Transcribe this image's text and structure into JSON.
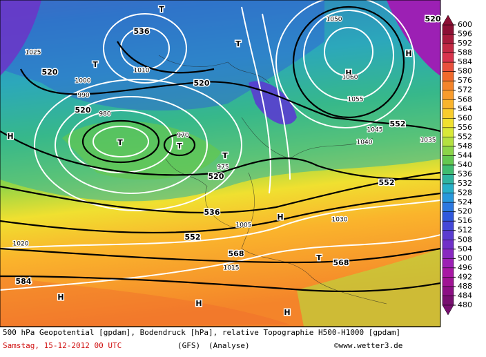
{
  "legend": {
    "values": [
      600,
      596,
      592,
      588,
      584,
      580,
      576,
      572,
      568,
      564,
      560,
      556,
      552,
      548,
      544,
      540,
      536,
      532,
      528,
      524,
      520,
      516,
      512,
      508,
      504,
      500,
      496,
      492,
      488,
      484,
      480
    ],
    "colors": [
      "#8c1034",
      "#a81c3c",
      "#c42a44",
      "#d8344c",
      "#e8503c",
      "#f06a2c",
      "#f4842a",
      "#f89c2c",
      "#fab42c",
      "#f8cc2c",
      "#f0e030",
      "#d8e838",
      "#b4e040",
      "#8cd448",
      "#64c850",
      "#40bc70",
      "#30b4a0",
      "#28b0c8",
      "#2898dc",
      "#2c78e0",
      "#3058dc",
      "#4448d8",
      "#5a3cd0",
      "#7030c8",
      "#8828c0",
      "#9c20b4",
      "#a818a4",
      "#a01494",
      "#8c1084",
      "#781070"
    ]
  },
  "map_labels": [
    "520",
    "536",
    "520",
    "520",
    "520",
    "536",
    "552",
    "568",
    "584",
    "552",
    "552",
    "568",
    "520",
    "T",
    "T",
    "T",
    "T",
    "T",
    "T",
    "T",
    "H",
    "H",
    "H",
    "H",
    "H",
    "H",
    "H",
    "970",
    "975",
    "980",
    "990",
    "1000",
    "1005",
    "1010",
    "1015",
    "1020",
    "1025",
    "1030",
    "1040",
    "1045",
    "1050",
    "1055",
    "1060",
    "1035"
  ],
  "footer": {
    "line1": "500 hPa Geopotential [gpdam], Bodendruck [hPa], relative Topographie H500-H1000 [gpdam]",
    "date": "Samstag, 15-12-2012  00 UTC",
    "model": "(GFS)",
    "mode": "(Analyse)",
    "copyright": "©www.wetter3.de"
  }
}
